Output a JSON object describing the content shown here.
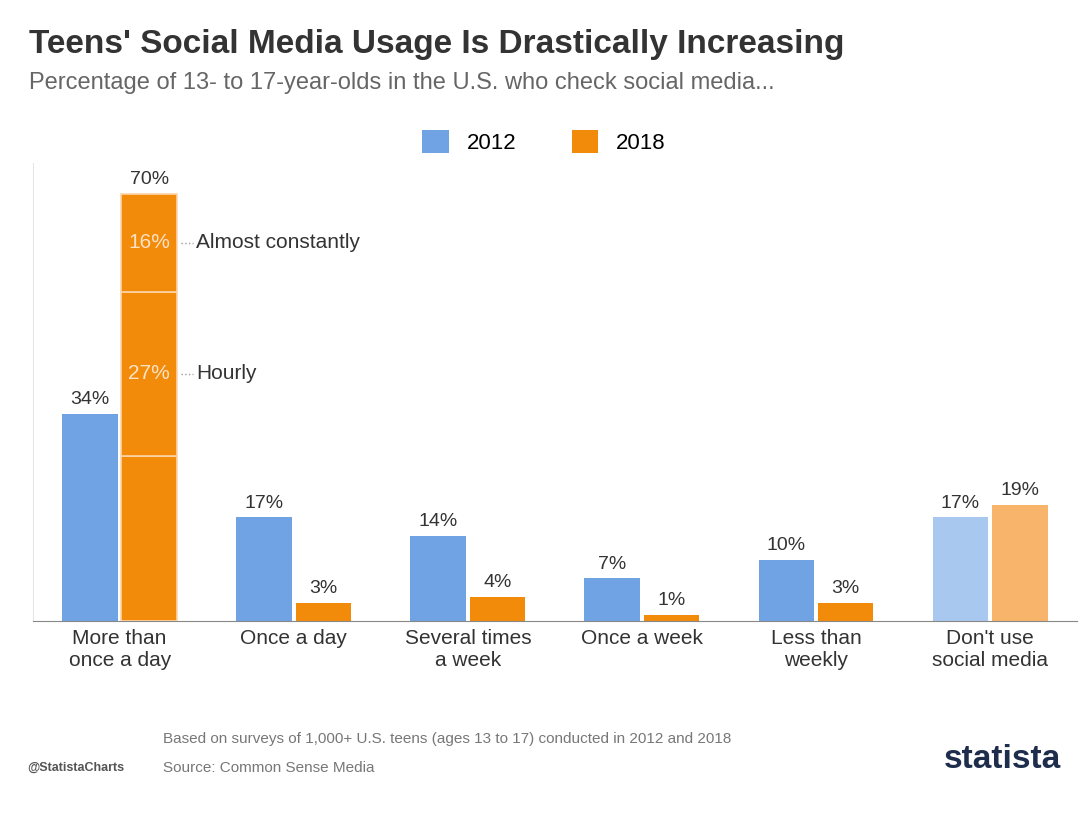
{
  "chart_data": {
    "type": "bar",
    "title": "Teens' Social Media Usage Is Drastically Increasing",
    "subtitle": "Percentage of 13- to 17-year-olds in the U.S. who check social media...",
    "categories": [
      "More than\nonce a day",
      "Once a day",
      "Several times\na week",
      "Once a week",
      "Less than\nweekly",
      "Don't use\nsocial media"
    ],
    "series": [
      {
        "name": "2012",
        "color": "#6fa3e3",
        "colors": [
          "#6fa3e3",
          "#6fa3e3",
          "#6fa3e3",
          "#6fa3e3",
          "#6fa3e3",
          "#a9c8f0"
        ],
        "values": [
          34,
          17,
          14,
          7,
          10,
          17
        ],
        "value_labels": [
          "34%",
          "17%",
          "14%",
          "7%",
          "10%",
          "17%"
        ]
      },
      {
        "name": "2018",
        "color": "#f28a0a",
        "colors": [
          "#f28a0a",
          "#f28a0a",
          "#f28a0a",
          "#f28a0a",
          "#f28a0a",
          "#f7b46a"
        ],
        "values": [
          70,
          3,
          4,
          1,
          3,
          19
        ],
        "value_labels": [
          "70%",
          "3%",
          "4%",
          "1%",
          "3%",
          "19%"
        ]
      }
    ],
    "segments": {
      "category": "More than\nonce a day",
      "series": "2018",
      "parts": [
        {
          "value": 27
        },
        {
          "name": "Hourly",
          "value": 27,
          "value_label": "27%"
        },
        {
          "name": "Almost constantly",
          "value": 16,
          "value_label": "16%"
        }
      ]
    },
    "ylim": [
      0,
      75
    ],
    "data_labels": true,
    "tick_labels": "x",
    "legend": "upper center",
    "grid": false,
    "note": "Based on surveys of 1,000+ U.S. teens (ages 13 to 17) conducted in 2012 and 2018",
    "source": "Source: Common Sense Media",
    "credit": "@StatistaCharts",
    "brand": "statista"
  }
}
